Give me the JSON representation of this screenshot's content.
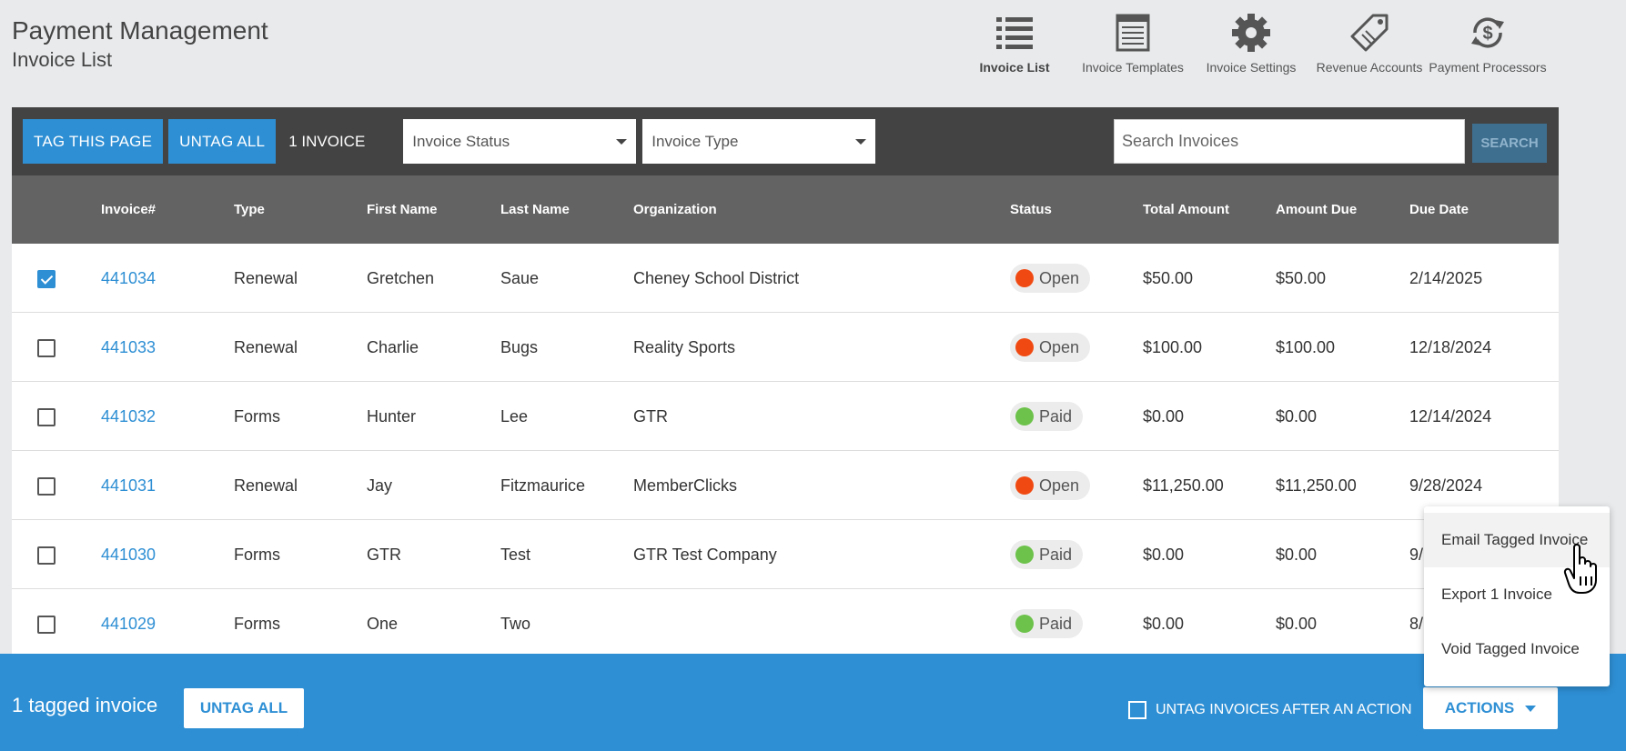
{
  "header": {
    "title": "Payment Management",
    "subtitle": "Invoice List"
  },
  "topnav": [
    {
      "label": "Invoice List",
      "icon": "list-icon",
      "active": true
    },
    {
      "label": "Invoice Templates",
      "icon": "template-icon",
      "active": false
    },
    {
      "label": "Invoice Settings",
      "icon": "gear-icon",
      "active": false
    },
    {
      "label": "Revenue Accounts",
      "icon": "tag-icon",
      "active": false
    },
    {
      "label": "Payment Processors",
      "icon": "refresh-dollar-icon",
      "active": false
    }
  ],
  "toolbar": {
    "tag_page_label": "TAG THIS PAGE",
    "untag_all_label": "UNTAG ALL",
    "count_label": "1 INVOICE",
    "status_select": "Invoice Status",
    "type_select": "Invoice Type",
    "search_placeholder": "Search Invoices",
    "search_label": "SEARCH"
  },
  "table": {
    "columns": [
      "Invoice#",
      "Type",
      "First Name",
      "Last Name",
      "Organization",
      "Status",
      "Total Amount",
      "Amount Due",
      "Due Date"
    ],
    "rows": [
      {
        "checked": true,
        "invoice": "441034",
        "type": "Renewal",
        "first": "Gretchen",
        "last": "Saue",
        "org": "Cheney School District",
        "status": "Open",
        "total": "$50.00",
        "due": "$50.00",
        "date": "2/14/2025"
      },
      {
        "checked": false,
        "invoice": "441033",
        "type": "Renewal",
        "first": "Charlie",
        "last": "Bugs",
        "org": "Reality Sports",
        "status": "Open",
        "total": "$100.00",
        "due": "$100.00",
        "date": "12/18/2024"
      },
      {
        "checked": false,
        "invoice": "441032",
        "type": "Forms",
        "first": "Hunter",
        "last": "Lee",
        "org": "GTR",
        "status": "Paid",
        "total": "$0.00",
        "due": "$0.00",
        "date": "12/14/2024"
      },
      {
        "checked": false,
        "invoice": "441031",
        "type": "Renewal",
        "first": "Jay",
        "last": "Fitzmaurice",
        "org": "MemberClicks",
        "status": "Open",
        "total": "$11,250.00",
        "due": "$11,250.00",
        "date": "9/28/2024"
      },
      {
        "checked": false,
        "invoice": "441030",
        "type": "Forms",
        "first": "GTR",
        "last": "Test",
        "org": "GTR Test Company",
        "status": "Paid",
        "total": "$0.00",
        "due": "$0.00",
        "date": "9/"
      },
      {
        "checked": false,
        "invoice": "441029",
        "type": "Forms",
        "first": "One",
        "last": "Two",
        "org": "",
        "status": "Paid",
        "total": "$0.00",
        "due": "$0.00",
        "date": "8/"
      }
    ]
  },
  "status_colors": {
    "Open": "#f04a12",
    "Paid": "#6cc24a"
  },
  "footer": {
    "tagged_text": "1 tagged invoice",
    "untag_all_label": "UNTAG ALL",
    "untag_after_label": "UNTAG INVOICES AFTER AN ACTION",
    "actions_label": "ACTIONS"
  },
  "actions_menu": [
    {
      "label": "Email Tagged Invoice",
      "hover": true
    },
    {
      "label": "Export 1 Invoice",
      "hover": false
    },
    {
      "label": "Void Tagged Invoice",
      "hover": false
    }
  ],
  "colors": {
    "accent": "#2e8fd4",
    "toolbar": "#434343",
    "table_header": "#636363"
  }
}
